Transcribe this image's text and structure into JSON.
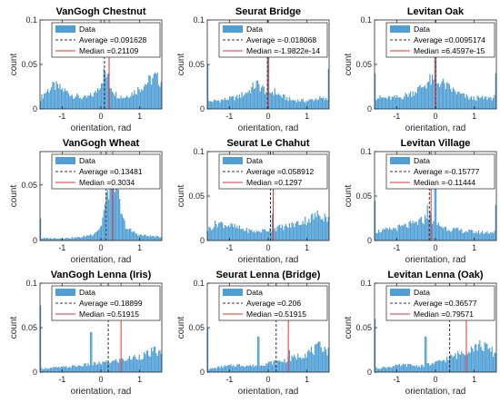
{
  "colors": {
    "bar": "#4f9fd6",
    "average": "#333333",
    "median": "#e8302c",
    "axis": "#262626"
  },
  "chart_data": [
    {
      "type": "bar",
      "title": "VanGogh Chestnut",
      "xlabel": "orientation, rad",
      "ylabel": "count",
      "xlim": [
        -1.57,
        1.57
      ],
      "ylim": [
        0,
        0.1
      ],
      "xticks": [
        -1,
        0,
        1
      ],
      "yticks": [
        0,
        0.05,
        0.1
      ],
      "ytick_labels": [
        "0",
        "0.05",
        "0.1"
      ],
      "grid": false,
      "legend_position": "top",
      "legend": {
        "data_label": "Data",
        "average_label": "Average =0.091628",
        "median_label": "Median =0.21109"
      },
      "average": 0.091628,
      "median": 0.21109,
      "shape": [
        [
          -1.57,
          0.011
        ],
        [
          -1.4,
          0.02
        ],
        [
          -1.2,
          0.026
        ],
        [
          -1.0,
          0.022
        ],
        [
          -0.7,
          0.015
        ],
        [
          -0.4,
          0.012
        ],
        [
          -0.15,
          0.017
        ],
        [
          0.0,
          0.03
        ],
        [
          0.1,
          0.042
        ],
        [
          0.2,
          0.03
        ],
        [
          0.4,
          0.016
        ],
        [
          0.6,
          0.013
        ],
        [
          0.9,
          0.02
        ],
        [
          1.2,
          0.03
        ],
        [
          1.4,
          0.036
        ],
        [
          1.57,
          0.03
        ]
      ],
      "spikes": [
        [
          0.21,
          0.04
        ]
      ]
    },
    {
      "type": "bar",
      "title": "Seurat Bridge",
      "xlabel": "orientation, rad",
      "ylabel": "count",
      "xlim": [
        -1.57,
        1.57
      ],
      "ylim": [
        0,
        0.1
      ],
      "xticks": [
        -1,
        0,
        1
      ],
      "yticks": [
        0,
        0.05,
        0.1
      ],
      "ytick_labels": [
        "0",
        "0.05",
        "0.1"
      ],
      "grid": false,
      "legend_position": "top",
      "legend": {
        "data_label": "Data",
        "average_label": "Average =-0.018068",
        "median_label": "Median =-1.9822e-14"
      },
      "average": -0.018068,
      "median": 0,
      "shape": [
        [
          -1.57,
          0.008
        ],
        [
          -1.2,
          0.01
        ],
        [
          -0.8,
          0.013
        ],
        [
          -0.5,
          0.02
        ],
        [
          -0.3,
          0.028
        ],
        [
          -0.1,
          0.022
        ],
        [
          0.0,
          0.018
        ],
        [
          0.15,
          0.02
        ],
        [
          0.3,
          0.015
        ],
        [
          0.6,
          0.01
        ],
        [
          1.0,
          0.009
        ],
        [
          1.3,
          0.012
        ],
        [
          1.57,
          0.01
        ]
      ],
      "spikes": [
        [
          0.0,
          0.075
        ],
        [
          -1.55,
          0.05
        ],
        [
          1.55,
          0.045
        ]
      ]
    },
    {
      "type": "bar",
      "title": "Levitan Oak",
      "xlabel": "orientation, rad",
      "ylabel": "count",
      "xlim": [
        -1.57,
        1.57
      ],
      "ylim": [
        0,
        0.1
      ],
      "xticks": [
        -1,
        0,
        1
      ],
      "yticks": [
        0,
        0.05,
        0.1
      ],
      "ytick_labels": [
        "0",
        "0.05",
        "0.1"
      ],
      "grid": false,
      "legend_position": "top",
      "legend": {
        "data_label": "Data",
        "average_label": "Average =0.0095174",
        "median_label": "Median =6.4597e-15"
      },
      "average": 0.0095174,
      "median": 0,
      "shape": [
        [
          -1.57,
          0.013
        ],
        [
          -1.2,
          0.012
        ],
        [
          -0.9,
          0.013
        ],
        [
          -0.6,
          0.018
        ],
        [
          -0.3,
          0.026
        ],
        [
          -0.15,
          0.032
        ],
        [
          0.0,
          0.03
        ],
        [
          0.15,
          0.03
        ],
        [
          0.3,
          0.025
        ],
        [
          0.6,
          0.017
        ],
        [
          0.9,
          0.012
        ],
        [
          1.2,
          0.012
        ],
        [
          1.57,
          0.013
        ]
      ],
      "spikes": [
        [
          0.0,
          0.07
        ],
        [
          -1.55,
          0.04
        ],
        [
          1.55,
          0.04
        ]
      ]
    },
    {
      "type": "bar",
      "title": "VanGogh Wheat",
      "xlabel": "orientation, rad",
      "ylabel": "count",
      "xlim": [
        -1.57,
        1.57
      ],
      "ylim": [
        0,
        0.08
      ],
      "xticks": [
        -1,
        0,
        1
      ],
      "yticks": [
        0,
        0.05
      ],
      "ytick_labels": [
        "0",
        "0.05"
      ],
      "grid": false,
      "legend_position": "top",
      "legend": {
        "data_label": "Data",
        "average_label": "Average =0.13481",
        "median_label": "Median =0.3034"
      },
      "average": 0.13481,
      "median": 0.3034,
      "shape": [
        [
          -1.57,
          0.002
        ],
        [
          -1.0,
          0.002
        ],
        [
          -0.5,
          0.003
        ],
        [
          -0.2,
          0.006
        ],
        [
          0.0,
          0.012
        ],
        [
          0.1,
          0.03
        ],
        [
          0.2,
          0.045
        ],
        [
          0.3,
          0.06
        ],
        [
          0.38,
          0.055
        ],
        [
          0.45,
          0.04
        ],
        [
          0.55,
          0.02
        ],
        [
          0.7,
          0.01
        ],
        [
          1.0,
          0.005
        ],
        [
          1.57,
          0.003
        ]
      ],
      "spikes": [
        [
          0.3,
          0.068
        ],
        [
          -1.55,
          0.02
        ]
      ]
    },
    {
      "type": "bar",
      "title": "Seurat Le Chahut",
      "xlabel": "orientation, rad",
      "ylabel": "count",
      "xlim": [
        -1.57,
        1.57
      ],
      "ylim": [
        0,
        0.1
      ],
      "xticks": [
        -1,
        0,
        1
      ],
      "yticks": [
        0,
        0.05,
        0.1
      ],
      "ytick_labels": [
        "0",
        "0.05",
        "0.1"
      ],
      "grid": false,
      "legend_position": "top",
      "legend": {
        "data_label": "Data",
        "average_label": "Average =0.058912",
        "median_label": "Median =0.1297"
      },
      "average": 0.058912,
      "median": 0.1297,
      "shape": [
        [
          -1.57,
          0.012
        ],
        [
          -1.3,
          0.02
        ],
        [
          -1.0,
          0.017
        ],
        [
          -0.6,
          0.012
        ],
        [
          -0.3,
          0.01
        ],
        [
          0.0,
          0.012
        ],
        [
          0.2,
          0.014
        ],
        [
          0.5,
          0.016
        ],
        [
          0.8,
          0.02
        ],
        [
          1.1,
          0.025
        ],
        [
          1.35,
          0.03
        ],
        [
          1.57,
          0.025
        ]
      ],
      "spikes": [
        [
          0.1,
          0.03
        ]
      ]
    },
    {
      "type": "bar",
      "title": "Levitan Village",
      "xlabel": "orientation, rad",
      "ylabel": "count",
      "xlim": [
        -1.57,
        1.57
      ],
      "ylim": [
        0,
        0.1
      ],
      "xticks": [
        -1,
        0,
        1
      ],
      "yticks": [
        0,
        0.05,
        0.1
      ],
      "ytick_labels": [
        "0",
        "0.05",
        "0.1"
      ],
      "grid": false,
      "legend_position": "top",
      "legend": {
        "data_label": "Data",
        "average_label": "Average =-0.15777",
        "median_label": "Median =-0.11444"
      },
      "average": -0.15777,
      "median": -0.11444,
      "shape": [
        [
          -1.57,
          0.01
        ],
        [
          -1.2,
          0.012
        ],
        [
          -0.9,
          0.015
        ],
        [
          -0.6,
          0.018
        ],
        [
          -0.35,
          0.022
        ],
        [
          -0.15,
          0.028
        ],
        [
          0.0,
          0.02
        ],
        [
          0.2,
          0.015
        ],
        [
          0.5,
          0.012
        ],
        [
          0.9,
          0.01
        ],
        [
          1.3,
          0.009
        ],
        [
          1.57,
          0.01
        ]
      ],
      "spikes": [
        [
          0.0,
          0.075
        ],
        [
          -0.2,
          0.04
        ],
        [
          -1.55,
          0.045
        ],
        [
          1.55,
          0.04
        ]
      ]
    },
    {
      "type": "bar",
      "title": "VanGogh Lenna (Iris)",
      "xlabel": "orientation, rad",
      "ylabel": "count",
      "xlim": [
        -1.57,
        1.57
      ],
      "ylim": [
        0,
        0.1
      ],
      "xticks": [
        -1,
        0,
        1
      ],
      "yticks": [
        0,
        0.05,
        0.1
      ],
      "ytick_labels": [
        "0",
        "0.05",
        "0.1"
      ],
      "grid": false,
      "legend_position": "top",
      "legend": {
        "data_label": "Data",
        "average_label": "Average =0.18899",
        "median_label": "Median =0.51915"
      },
      "average": 0.18899,
      "median": 0.51915,
      "shape": [
        [
          -1.57,
          0.004
        ],
        [
          -1.2,
          0.005
        ],
        [
          -0.8,
          0.006
        ],
        [
          -0.4,
          0.008
        ],
        [
          0.0,
          0.01
        ],
        [
          0.3,
          0.012
        ],
        [
          0.6,
          0.014
        ],
        [
          0.9,
          0.017
        ],
        [
          1.2,
          0.02
        ],
        [
          1.4,
          0.024
        ],
        [
          1.57,
          0.02
        ]
      ],
      "spikes": [
        [
          -0.25,
          0.045
        ],
        [
          -1.55,
          0.075
        ]
      ]
    },
    {
      "type": "bar",
      "title": "Seurat Lenna (Bridge)",
      "xlabel": "orientation, rad",
      "ylabel": "count",
      "xlim": [
        -1.57,
        1.57
      ],
      "ylim": [
        0,
        0.1
      ],
      "xticks": [
        -1,
        0,
        1
      ],
      "yticks": [
        0,
        0.05,
        0.1
      ],
      "ytick_labels": [
        "0",
        "0.05",
        "0.1"
      ],
      "grid": false,
      "legend_position": "top",
      "legend": {
        "data_label": "Data",
        "average_label": "Average =0.206",
        "median_label": "Median =0.51915"
      },
      "average": 0.206,
      "median": 0.51915,
      "shape": [
        [
          -1.57,
          0.003
        ],
        [
          -1.2,
          0.006
        ],
        [
          -0.8,
          0.008
        ],
        [
          -0.4,
          0.007
        ],
        [
          0.0,
          0.01
        ],
        [
          0.3,
          0.012
        ],
        [
          0.6,
          0.015
        ],
        [
          0.9,
          0.02
        ],
        [
          1.2,
          0.025
        ],
        [
          1.4,
          0.03
        ],
        [
          1.57,
          0.022
        ]
      ],
      "spikes": [
        [
          -0.25,
          0.04
        ],
        [
          0.55,
          0.025
        ],
        [
          -1.55,
          0.05
        ]
      ]
    },
    {
      "type": "bar",
      "title": "Levitan Lenna (Oak)",
      "xlabel": "orientation, rad",
      "ylabel": "count",
      "xlim": [
        -1.57,
        1.57
      ],
      "ylim": [
        0,
        0.1
      ],
      "xticks": [
        -1,
        0,
        1
      ],
      "yticks": [
        0,
        0.05,
        0.1
      ],
      "ytick_labels": [
        "0",
        "0.05",
        "0.1"
      ],
      "grid": false,
      "legend_position": "top",
      "legend": {
        "data_label": "Data",
        "average_label": "Average =0.36577",
        "median_label": "Median =0.79571"
      },
      "average": 0.36577,
      "median": 0.79571,
      "shape": [
        [
          -1.57,
          0.004
        ],
        [
          -1.2,
          0.006
        ],
        [
          -0.8,
          0.008
        ],
        [
          -0.4,
          0.007
        ],
        [
          0.0,
          0.01
        ],
        [
          0.3,
          0.015
        ],
        [
          0.6,
          0.02
        ],
        [
          0.9,
          0.028
        ],
        [
          1.2,
          0.03
        ],
        [
          1.4,
          0.025
        ],
        [
          1.57,
          0.02
        ]
      ],
      "spikes": [
        [
          -0.25,
          0.04
        ],
        [
          -1.55,
          0.06
        ]
      ]
    }
  ]
}
